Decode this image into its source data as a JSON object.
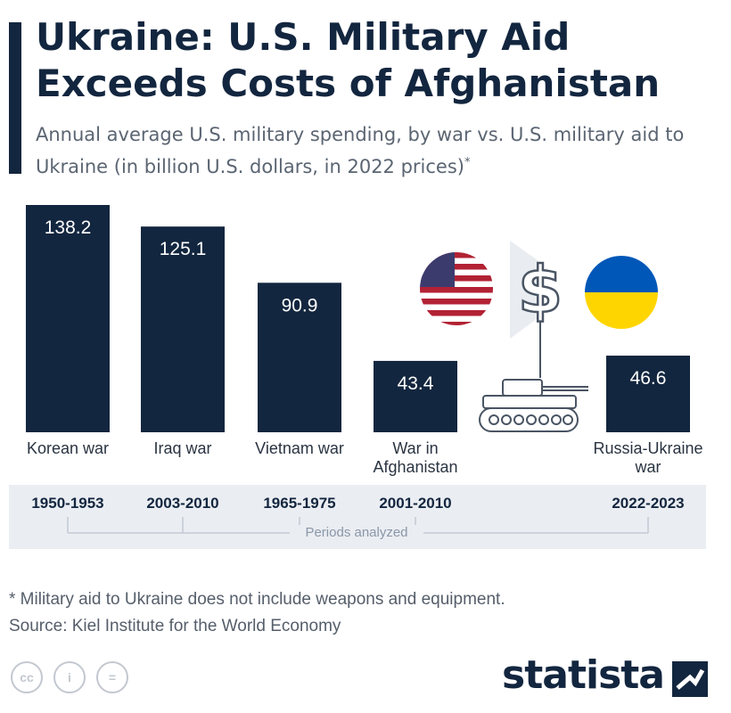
{
  "header": {
    "title": "Ukraine: U.S. Military Aid Exceeds Costs of Afghanistan",
    "subtitle": "Annual average U.S. military spending, by war vs. U.S. military aid to Ukraine (in billion U.S. dollars, in 2022 prices)",
    "subtitle_mark": "*"
  },
  "chart_data": {
    "type": "bar",
    "categories": [
      "Korean war",
      "Iraq war",
      "Vietnam war",
      "War in Afghanistan",
      "Russia-Ukraine war"
    ],
    "category_lines": [
      [
        "Korean war"
      ],
      [
        "Iraq war"
      ],
      [
        "Vietnam war"
      ],
      [
        "War in",
        "Afghanistan"
      ],
      [
        "Russia-Ukraine",
        "war"
      ]
    ],
    "values": [
      138.2,
      125.1,
      90.9,
      43.4,
      46.6
    ],
    "value_labels": [
      "138.2",
      "125.1",
      "90.9",
      "43.4",
      "46.6"
    ],
    "periods": [
      "1950-1953",
      "2003-2010",
      "1965-1975",
      "2001-2010",
      "2022-2023"
    ],
    "periods_caption": "Periods analyzed",
    "ylim": [
      0,
      138.2
    ],
    "bar_color": "#13263f",
    "grid": false
  },
  "decorations": {
    "icons": [
      "us-flag-icon",
      "dollar-sign-icon",
      "ukraine-flag-icon",
      "tank-icon"
    ],
    "colors": {
      "ukraine_blue": "#0057b8",
      "ukraine_yellow": "#ffd500",
      "us_red": "#b22234",
      "us_blue": "#3c3b6e"
    }
  },
  "footer": {
    "footnote": "* Military aid to Ukraine does not include weapons and equipment.",
    "source": "Source: Kiel Institute for the World Economy",
    "brand": "statista",
    "license_icons": [
      "cc",
      "i",
      "="
    ]
  }
}
